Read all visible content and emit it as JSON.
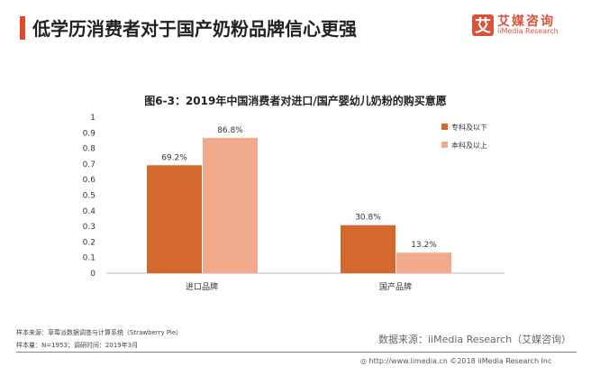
{
  "header": {
    "title": "低学历消费者对于国产奶粉品牌信心更强",
    "logo_cn": "艾媒咨询",
    "logo_en": "iiMedia Research",
    "logo_glyph": "艾"
  },
  "chart_data": {
    "type": "bar",
    "title": "图6-3：2019年中国消费者对进口/国产婴幼儿奶粉的购买意愿",
    "categories": [
      "进口品牌",
      "国产品牌"
    ],
    "series": [
      {
        "name": "专科及以下",
        "values": [
          0.692,
          0.308
        ],
        "labels": [
          "69.2%",
          "30.8%"
        ],
        "color": "#d4692d"
      },
      {
        "name": "本科及以上",
        "values": [
          0.868,
          0.132
        ],
        "labels": [
          "86.8%",
          "13.2%"
        ],
        "color": "#f2aa8c"
      }
    ],
    "ylim": [
      0,
      1
    ],
    "yticks": [
      "0",
      "0.1",
      "0.2",
      "0.3",
      "0.4",
      "0.5",
      "0.6",
      "0.7",
      "0.8",
      "0.9",
      "1"
    ],
    "grid": false,
    "legend": "right"
  },
  "footer": {
    "sample_source": "样本来源：草莓派数据调查与计算系统（Strawberry  Pie）",
    "sample_size": "样本量：N=1953；调研时间：2019年3月",
    "data_source": "数据来源：iiMedia Research（艾媒咨询）",
    "copyright": "http://www.iimedia.cn   ©2018  iiMedia Research Inc"
  }
}
